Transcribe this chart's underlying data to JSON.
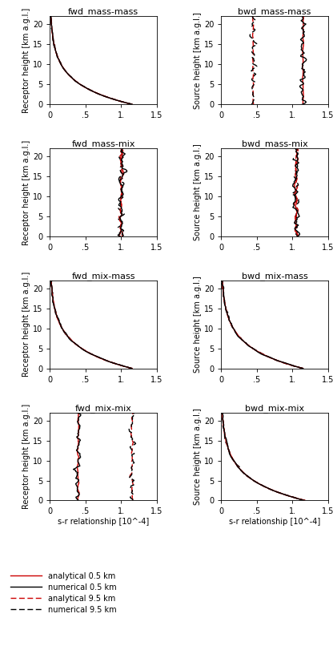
{
  "titles_left": [
    "fwd_mass-mass",
    "fwd_mass-mix",
    "fwd_mix-mass",
    "fwd_mix-mix"
  ],
  "titles_right": [
    "bwd_mass-mass",
    "bwd_mass-mix",
    "bwd_mix-mass",
    "bwd_mix-mix"
  ],
  "ylabel_left": "Receptor height [km a.g.l.]",
  "ylabel_right": "Source height [km a.g.l.]",
  "xlabel_bottom": "s-r relationship [10^-4]",
  "xlim": [
    0,
    1.5
  ],
  "ylim": [
    0,
    22
  ],
  "yticks": [
    0,
    5,
    10,
    15,
    20
  ],
  "xticks": [
    0,
    0.5,
    1.0,
    1.5
  ],
  "xticklabels": [
    "0",
    ".5",
    "1.",
    "1.5"
  ],
  "npts": 80,
  "hmin": 0.0,
  "hmax": 22.0,
  "color_red": "#cc0000",
  "color_black": "#000000",
  "lw": 1.0,
  "title_fontsize": 8.0,
  "label_fontsize": 7.0,
  "tick_fontsize": 7.0,
  "legend_labels": [
    "analytical 0.5 km",
    "numerical 0.5 km",
    "analytical 9.5 km",
    "numerical 9.5 km"
  ]
}
